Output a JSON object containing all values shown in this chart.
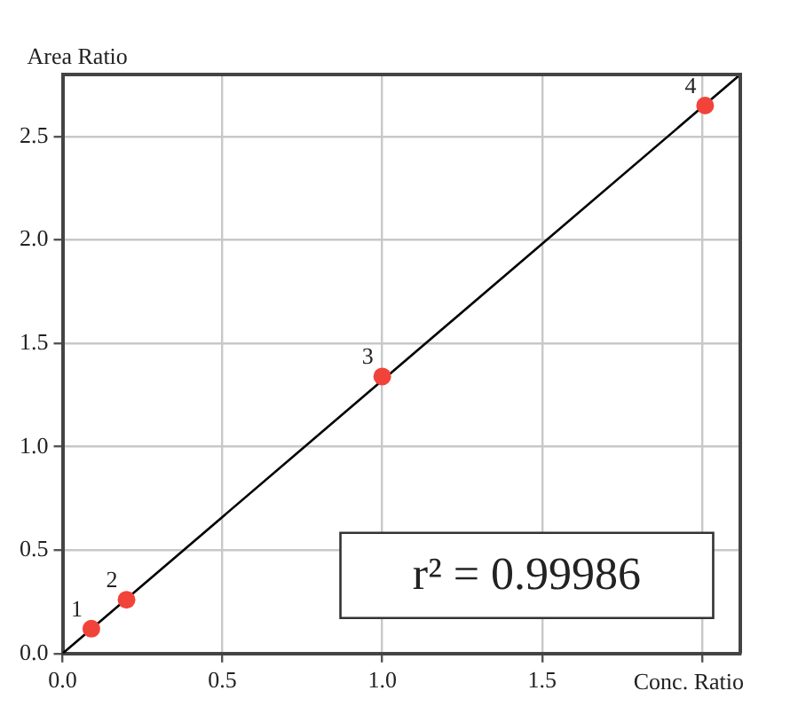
{
  "chart_data": {
    "type": "scatter",
    "xlabel": "Conc. Ratio",
    "ylabel": "Area Ratio",
    "series": [
      {
        "color": "#f2433a",
        "marker": "circle",
        "x": [
          0.09,
          0.2,
          1.0,
          2.01
        ],
        "values": [
          0.12,
          0.26,
          1.34,
          2.65
        ]
      },
      {
        "type": "line",
        "marker": "none",
        "color": "#000000",
        "x": [
          0,
          2.12
        ],
        "values": [
          0,
          2.8
        ]
      }
    ],
    "xlim": [
      0,
      2.12
    ],
    "xticks": [
      {
        "value": 0,
        "label": "0.0"
      },
      0.5,
      {
        "value": 1,
        "label": "1.0"
      },
      1.5,
      {
        "value": 2,
        "label": null
      }
    ],
    "ylim": [
      0,
      2.8
    ],
    "yticks": [
      {
        "value": 0,
        "label": "0.0"
      },
      0.5,
      {
        "value": 1,
        "label": "1.0"
      },
      1.5,
      {
        "value": 2,
        "label": "2.0"
      },
      2.5
    ],
    "grid": true,
    "legend": false,
    "annotations": [
      {
        "text": "1",
        "x": 0.09,
        "y": 0.12
      },
      {
        "text": "2",
        "x": 0.2,
        "y": 0.26
      },
      {
        "text": "3",
        "x": 1.0,
        "y": 1.34
      },
      {
        "text": "4",
        "x": 2.01,
        "y": 2.65
      },
      "r² = 0.99986"
    ]
  }
}
